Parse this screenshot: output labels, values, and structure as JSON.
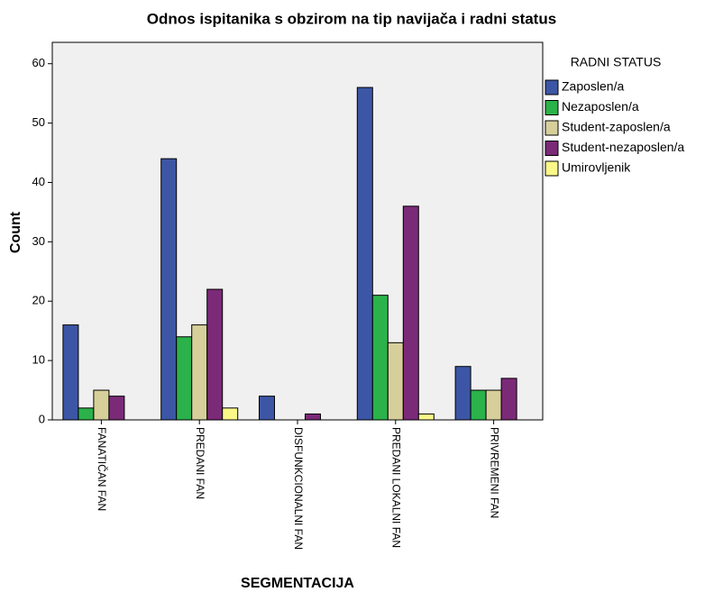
{
  "chart_data": {
    "type": "bar",
    "title": "Odnos ispitanika s obzirom na tip navijača i radni status",
    "x_label": "SEGMENTACIJA",
    "y_label": "Count",
    "legend_title": "RADNI STATUS",
    "legend_position": "right",
    "categories": [
      "FANATIČAN FAN",
      "PREDANI FAN",
      "DISFUNKCIONALNI FAN",
      "PREDANI LOKALNI FAN",
      "PRIVREMENI FAN"
    ],
    "series": [
      {
        "name": "Zaposlen/a",
        "color": "#3c56a5",
        "values": [
          16,
          44,
          4,
          56,
          9
        ]
      },
      {
        "name": "Nezaposlen/a",
        "color": "#2bb24a",
        "values": [
          2,
          14,
          null,
          21,
          5
        ]
      },
      {
        "name": "Student-zaposlen/a",
        "color": "#d7cf9a",
        "values": [
          5,
          16,
          null,
          13,
          5
        ]
      },
      {
        "name": "Student-nezaposlen/a",
        "color": "#7b2a78",
        "values": [
          4,
          22,
          1,
          36,
          7
        ]
      },
      {
        "name": "Umirovljenik",
        "color": "#fbf88a",
        "values": [
          null,
          2,
          null,
          1,
          null
        ]
      }
    ],
    "ylim": [
      0,
      63.6
    ],
    "yticks": [
      0,
      10,
      20,
      30,
      40,
      50,
      60
    ],
    "grid": false
  }
}
